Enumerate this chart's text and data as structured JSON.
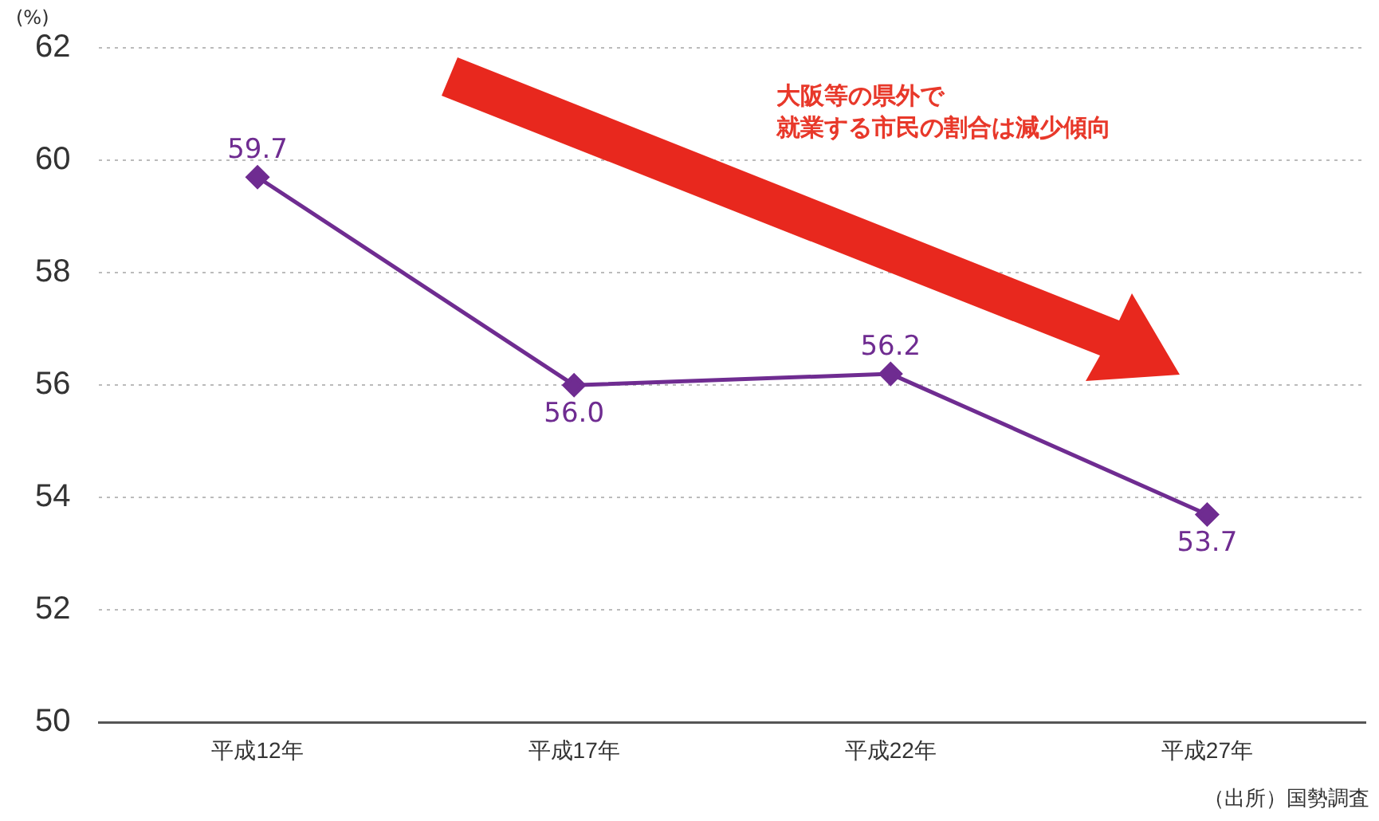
{
  "chart_data": {
    "type": "line",
    "ylabel": "(%)",
    "categories": [
      "平成12年",
      "平成17年",
      "平成22年",
      "平成27年"
    ],
    "series": [
      {
        "color": "#6f2c91",
        "values": [
          59.7,
          56.0,
          56.2,
          53.7
        ],
        "value_labels": [
          "59.7",
          "56.0",
          "56.2",
          "53.7"
        ]
      }
    ],
    "ylim": [
      50,
      62
    ],
    "yticks": [
      50,
      52,
      54,
      56,
      58,
      60,
      62
    ],
    "grid": "y",
    "legend": false,
    "marker": "diamond",
    "line_style": "solid",
    "annotations": [
      "大阪等の県外で",
      "就業する市民の割合は減少傾向",
      "（出所）国勢調査"
    ]
  }
}
